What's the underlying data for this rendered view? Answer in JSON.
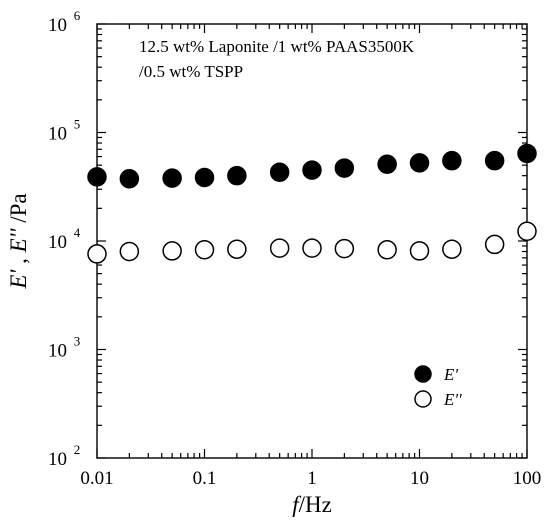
{
  "chart_data": {
    "type": "scatter",
    "title": "",
    "annotation_lines": [
      "12.5 wt% Laponite /1 wt% PAAS3500K",
      "/0.5 wt% TSPP"
    ],
    "xlabel": {
      "italic": "f",
      "rest": "/Hz"
    },
    "ylabel": {
      "part1": "E'",
      "sep": " , ",
      "part2": "E''",
      "rest": " /Pa"
    },
    "x_scale": "log",
    "y_scale": "log",
    "xlim": [
      0.01,
      100
    ],
    "ylim": [
      100,
      1000000
    ],
    "x_ticks": [
      {
        "value": 0.01,
        "label": "0.01"
      },
      {
        "value": 0.1,
        "label": "0.1"
      },
      {
        "value": 1,
        "label": "1"
      },
      {
        "value": 10,
        "label": "10"
      },
      {
        "value": 100,
        "label": "100"
      }
    ],
    "y_ticks": [
      {
        "value": 100,
        "base": "10",
        "exp": "2"
      },
      {
        "value": 1000,
        "base": "10",
        "exp": "3"
      },
      {
        "value": 10000,
        "base": "10",
        "exp": "4"
      },
      {
        "value": 100000,
        "base": "10",
        "exp": "5"
      },
      {
        "value": 1000000,
        "base": "10",
        "exp": "6"
      }
    ],
    "grid": false,
    "legend_position": "bottom-right",
    "series": [
      {
        "name": "E'",
        "marker": "filled-circle",
        "color": "#000000",
        "x": [
          0.01,
          0.02,
          0.05,
          0.1,
          0.2,
          0.5,
          1,
          2,
          5,
          10,
          20,
          50,
          100
        ],
        "y": [
          39000,
          37500,
          38000,
          38500,
          40000,
          43000,
          45000,
          47000,
          51000,
          52500,
          55000,
          55000,
          64000
        ]
      },
      {
        "name": "E''",
        "marker": "open-circle",
        "color": "#000000",
        "x": [
          0.01,
          0.02,
          0.05,
          0.1,
          0.2,
          0.5,
          1,
          2,
          5,
          10,
          20,
          50,
          100
        ],
        "y": [
          7600,
          8000,
          8100,
          8300,
          8400,
          8600,
          8600,
          8500,
          8300,
          8100,
          8400,
          9300,
          12300
        ]
      }
    ]
  }
}
